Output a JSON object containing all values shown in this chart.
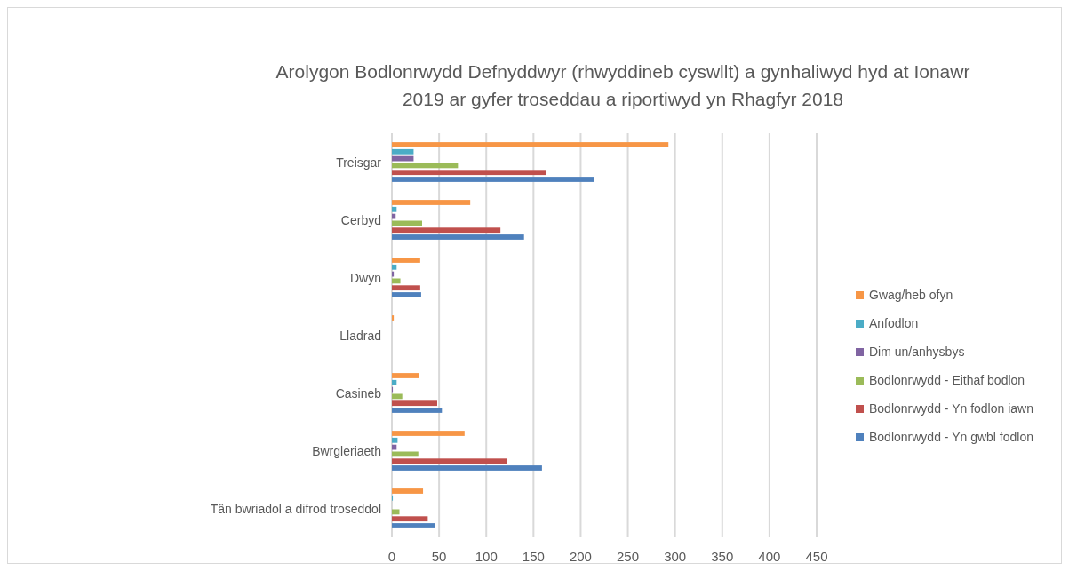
{
  "chart_data": {
    "type": "bar",
    "orientation": "horizontal",
    "title": "Arolygon Bodlonrwydd Defnyddwyr (rhwyddineb cyswllt) a gynhaliwyd hyd at Ionawr\n2019 ar gyfer troseddau a riportiwyd yn Rhagfyr 2018",
    "categories": [
      "Treisgar",
      "Cerbyd",
      "Dwyn",
      "Lladrad",
      "Casineb",
      "Bwrgleriaeth",
      "Tân bwriadol a difrod troseddol"
    ],
    "series": [
      {
        "name": "Gwag/heb ofyn",
        "color": "#f79646",
        "values": [
          293,
          83,
          30,
          2,
          29,
          77,
          33
        ]
      },
      {
        "name": "Anfodlon",
        "color": "#4bacc6",
        "values": [
          23,
          5,
          5,
          0,
          5,
          6,
          1
        ]
      },
      {
        "name": "Dim un/anhysbys",
        "color": "#8064a2",
        "values": [
          23,
          4,
          2,
          0,
          1,
          5,
          0
        ]
      },
      {
        "name": "Bodlonrwydd - Eithaf bodlon",
        "color": "#9bbb59",
        "values": [
          70,
          32,
          9,
          0,
          11,
          28,
          8
        ]
      },
      {
        "name": "Bodlonrwydd - Yn fodlon iawn",
        "color": "#c0504d",
        "values": [
          163,
          115,
          30,
          0,
          48,
          122,
          38
        ]
      },
      {
        "name": "Bodlonrwydd - Yn gwbl fodlon",
        "color": "#4f81bd",
        "values": [
          214,
          140,
          31,
          0,
          53,
          159,
          46
        ]
      }
    ],
    "xlim": [
      0,
      450
    ],
    "xticks": [
      0,
      50,
      100,
      150,
      200,
      250,
      300,
      350,
      400,
      450
    ],
    "grid": "x",
    "legend": "right"
  }
}
